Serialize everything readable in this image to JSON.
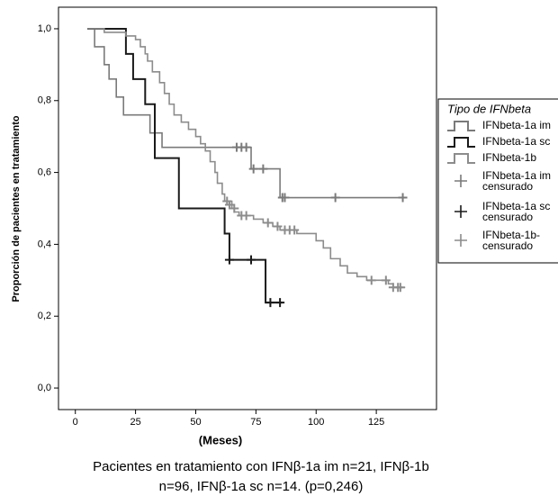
{
  "chart_data": {
    "type": "step",
    "ylabel": "Proporción de pacientes en tratamiento",
    "xlabel": "(Meses)",
    "caption": [
      "Pacientes en tratamiento con IFNβ-1a im n=21, IFNβ-1b",
      "n=96, IFNβ-1a sc n=14. (p=0,246)"
    ],
    "legend_title": "Tipo de IFNbeta",
    "xlim": [
      -7,
      150
    ],
    "ylim": [
      -0.06,
      1.06
    ],
    "xticks": [
      0,
      25,
      50,
      75,
      100,
      125
    ],
    "yticks": [
      {
        "value": 0.0,
        "label": "0,0"
      },
      {
        "value": 0.2,
        "label": "0,2"
      },
      {
        "value": 0.4,
        "label": "0,4"
      },
      {
        "value": 0.6,
        "label": "0,6"
      },
      {
        "value": 0.8,
        "label": "0,8"
      },
      {
        "value": 1.0,
        "label": "1,0"
      }
    ],
    "series": [
      {
        "name": "IFNbeta-1a im",
        "color": "#7a7a7a",
        "marker": "step",
        "x": [
          5,
          8,
          12,
          14,
          17,
          20,
          31,
          36,
          73,
          85,
          137
        ],
        "values": [
          1.0,
          0.95,
          0.9,
          0.86,
          0.81,
          0.76,
          0.71,
          0.67,
          0.61,
          0.53,
          0.53
        ]
      },
      {
        "name": "IFNbeta-1a sc",
        "color": "#1a1a1a",
        "marker": "step",
        "x": [
          5,
          21,
          24,
          29,
          33,
          43,
          62,
          64,
          79,
          86
        ],
        "values": [
          1.0,
          0.93,
          0.86,
          0.79,
          0.64,
          0.5,
          0.43,
          0.357,
          0.238,
          0.238
        ]
      },
      {
        "name": "IFNbeta-1b",
        "color": "#8c8c8c",
        "marker": "step",
        "x": [
          5,
          12,
          21,
          25,
          27,
          29,
          30,
          32,
          35,
          37,
          39,
          41,
          44,
          47,
          50,
          52,
          54,
          56,
          58,
          59,
          61,
          62,
          65,
          66,
          68,
          74,
          78,
          82,
          85,
          92,
          100,
          103,
          106,
          110,
          113,
          117,
          121,
          130,
          132,
          137
        ],
        "values": [
          1.0,
          0.99,
          0.98,
          0.97,
          0.95,
          0.93,
          0.91,
          0.88,
          0.85,
          0.82,
          0.79,
          0.76,
          0.74,
          0.72,
          0.7,
          0.68,
          0.66,
          0.63,
          0.6,
          0.57,
          0.54,
          0.52,
          0.5,
          0.49,
          0.48,
          0.47,
          0.46,
          0.45,
          0.44,
          0.43,
          0.41,
          0.39,
          0.36,
          0.34,
          0.32,
          0.31,
          0.3,
          0.29,
          0.28,
          0.28
        ]
      },
      {
        "name": "IFNbeta-1a im\ncensurado",
        "color": "#7a7a7a",
        "marker": "plus",
        "x": [
          67,
          69,
          71,
          74,
          78,
          86,
          87,
          108,
          136
        ],
        "values": [
          0.67,
          0.67,
          0.67,
          0.61,
          0.61,
          0.53,
          0.53,
          0.53,
          0.53
        ]
      },
      {
        "name": "IFNbeta-1a sc\ncensurado",
        "color": "#1a1a1a",
        "marker": "plus",
        "x": [
          64,
          73,
          81,
          85
        ],
        "values": [
          0.357,
          0.357,
          0.238,
          0.238
        ]
      },
      {
        "name": "IFNbeta-1b-\ncensurado",
        "color": "#8c8c8c",
        "marker": "plus",
        "x": [
          63,
          64,
          66,
          69,
          71,
          80,
          84,
          87,
          89,
          91,
          123,
          129,
          132,
          134,
          135
        ],
        "values": [
          0.52,
          0.51,
          0.5,
          0.48,
          0.48,
          0.46,
          0.45,
          0.44,
          0.44,
          0.44,
          0.3,
          0.3,
          0.28,
          0.28,
          0.28
        ]
      }
    ]
  }
}
